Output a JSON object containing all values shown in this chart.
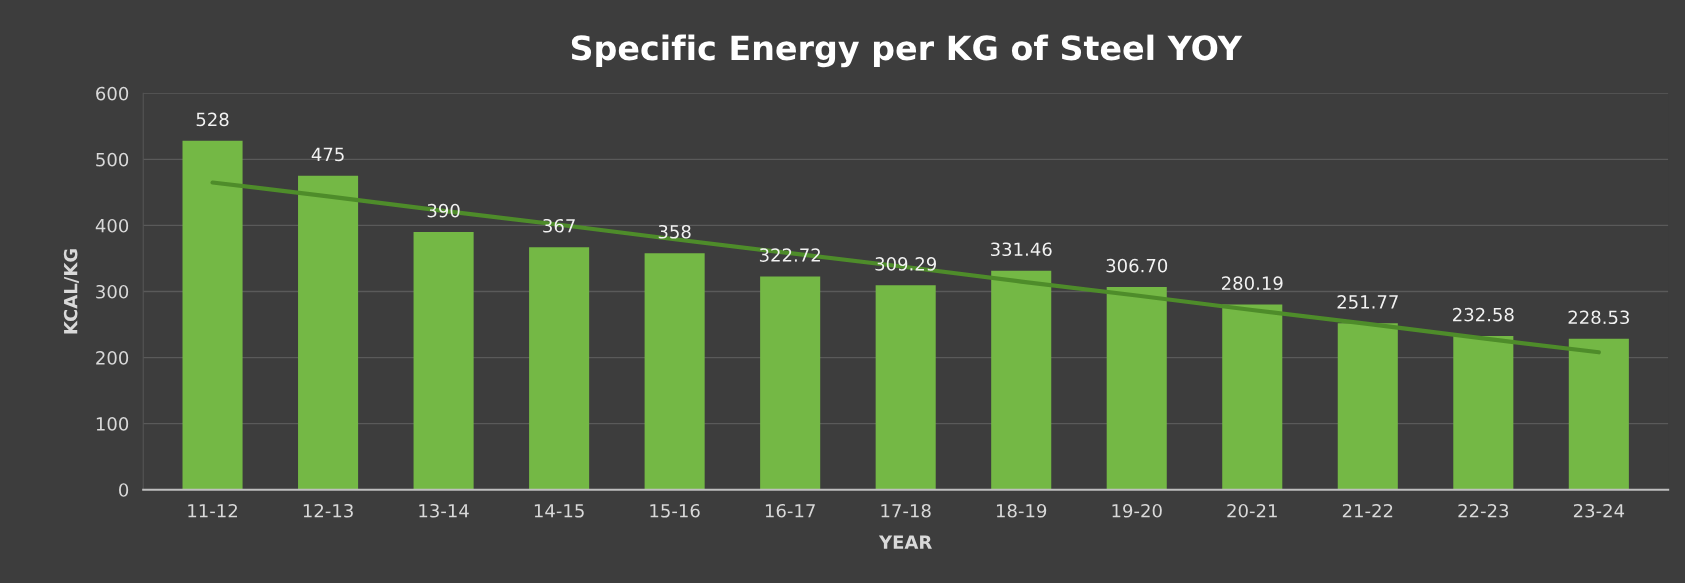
{
  "chart_data": {
    "type": "bar",
    "title": "Specific Energy per KG of Steel YOY",
    "xlabel": "YEAR",
    "ylabel": "KCAL/KG",
    "categories": [
      "11-12",
      "12-13",
      "13-14",
      "14-15",
      "15-16",
      "16-17",
      "17-18",
      "18-19",
      "19-20",
      "20-21",
      "21-22",
      "22-23",
      "23-24"
    ],
    "series": [
      {
        "color": "#74b845",
        "values": [
          528,
          475,
          390,
          367,
          358,
          322.72,
          309.29,
          331.46,
          306.7,
          280.19,
          251.77,
          232.58,
          228.53
        ],
        "value_labels": [
          "528",
          "475",
          "390",
          "367",
          "358",
          "322.72",
          "309.29",
          "331.46",
          "306.70",
          "280.19",
          "251.77",
          "232.58",
          "228.53"
        ]
      },
      {
        "type": "line",
        "color": "#4e8c2a",
        "values": [
          465,
          444,
          422,
          401,
          379,
          358,
          337,
          315,
          294,
          272,
          251,
          229,
          208
        ]
      }
    ],
    "ylim": [
      0,
      600
    ],
    "yticks": [
      0,
      100,
      200,
      300,
      400,
      500,
      600
    ],
    "grid": "y",
    "legend": false
  }
}
